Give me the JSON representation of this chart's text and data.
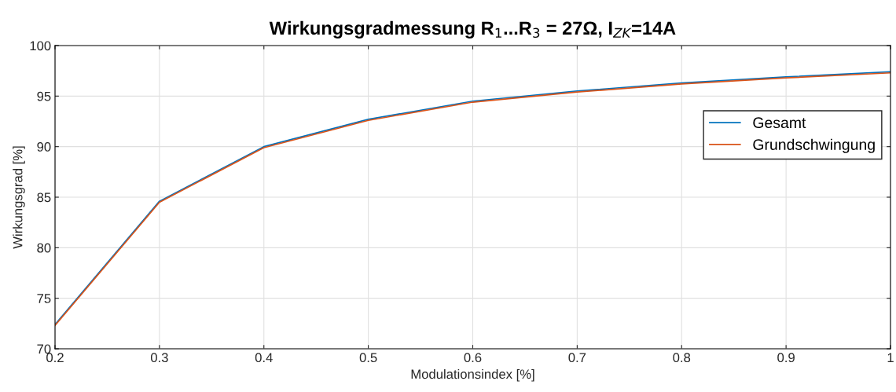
{
  "chart_data": {
    "type": "line",
    "title": "Wirkungsgradmessung R$_{1}$...R$_{3}$ = 27Ω, I$_{ZK}$=14A",
    "xlabel": "Modulationsindex [%]",
    "ylabel": "Wirkungsgrad [%]",
    "x": [
      0.2,
      0.3,
      0.4,
      0.5,
      0.6,
      0.7,
      0.8,
      0.9,
      1.0
    ],
    "series": [
      {
        "name": "Gesamt",
        "color": "#0072bd",
        "values": [
          72.4,
          84.6,
          90.0,
          92.7,
          94.5,
          95.5,
          96.3,
          96.9,
          97.4
        ]
      },
      {
        "name": "Grundschwingung",
        "color": "#d95319",
        "values": [
          72.3,
          84.5,
          89.9,
          92.6,
          94.4,
          95.4,
          96.2,
          96.8,
          97.3
        ]
      }
    ],
    "xlim": [
      0.2,
      1
    ],
    "xticks": [
      0.2,
      0.3,
      0.4,
      0.5,
      0.6,
      0.7,
      0.8,
      0.9,
      {
        "value": 1,
        "label": "1"
      }
    ],
    "ylim": [
      70,
      100
    ],
    "yticks": [
      70,
      75,
      80,
      85,
      90,
      95,
      100
    ],
    "grid": true,
    "legend": "top right",
    "marker": "none",
    "line_style": "solid"
  }
}
